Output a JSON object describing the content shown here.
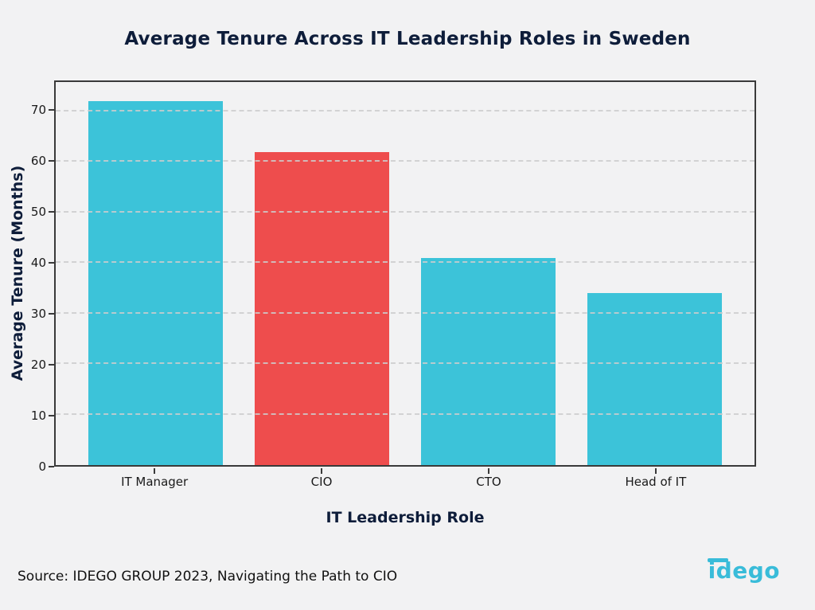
{
  "chart_data": {
    "type": "bar",
    "title": "Average Tenure Across IT Leadership Roles in Sweden",
    "categories": [
      "IT Manager",
      "CIO",
      "CTO",
      "Head of IT"
    ],
    "values": [
      72,
      62,
      41,
      34
    ],
    "bar_colors": [
      "#3cc3d9",
      "#ee4d4d",
      "#3cc3d9",
      "#3cc3d9"
    ],
    "xlabel": "IT Leadership Role",
    "ylabel": "Average Tenure (Months)",
    "yticks": [
      0,
      10,
      20,
      30,
      40,
      50,
      60,
      70
    ],
    "ylim": [
      0,
      75.8
    ],
    "grid": "horizontal-dashed",
    "legend": "none"
  },
  "footer": {
    "source": "Source: IDEGO GROUP 2023, Navigating the Path to CIO",
    "logo_text": "idego"
  },
  "colors": {
    "accent_cyan": "#3cc3d9",
    "accent_red": "#ee4d4d",
    "navy": "#0e1d3a",
    "background": "#f2f2f3",
    "logo_teal": "#39bcd9",
    "grid": "#cdcdcd",
    "frame": "#3a3a3a"
  }
}
